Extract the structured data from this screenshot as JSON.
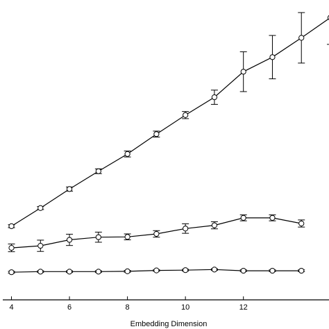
{
  "chart_data": {
    "type": "line",
    "title": "",
    "xlabel": "Embedding Dimension",
    "ylabel": "",
    "xlim": [
      3.7,
      15
    ],
    "ylim": [
      0,
      100
    ],
    "x_ticks": [
      4,
      6,
      8,
      10,
      12
    ],
    "grid": false,
    "marker": "circle",
    "series": [
      {
        "x": [
          4,
          5,
          6,
          7,
          8,
          9,
          10,
          11,
          12,
          13,
          14,
          15
        ],
        "values": [
          24.8,
          30.9,
          37.3,
          43.3,
          49.1,
          55.8,
          62.2,
          68.2,
          76.8,
          81.7,
          88.2,
          95.0
        ],
        "errors": [
          0.5,
          0.5,
          0.7,
          0.8,
          1.0,
          1.0,
          1.2,
          2.4,
          6.7,
          7.3,
          8.5,
          9.0
        ]
      },
      {
        "x": [
          4,
          5,
          6,
          7,
          8,
          9,
          10,
          11,
          12,
          13,
          14
        ],
        "values": [
          17.5,
          18.2,
          20.2,
          21.1,
          21.2,
          22.2,
          24.0,
          25.1,
          27.6,
          27.6,
          25.7
        ],
        "errors": [
          1.3,
          1.9,
          1.9,
          1.7,
          1.0,
          1.1,
          1.6,
          1.2,
          1.0,
          1.0,
          1.2
        ]
      },
      {
        "x": [
          4,
          5,
          6,
          7,
          8,
          9,
          10,
          11,
          12,
          13,
          14
        ],
        "values": [
          9.3,
          9.5,
          9.5,
          9.5,
          9.6,
          9.9,
          10.0,
          10.2,
          9.8,
          9.8,
          9.8
        ],
        "errors": [
          0.3,
          0.3,
          0.3,
          0.3,
          0.3,
          0.3,
          0.3,
          0.3,
          0.3,
          0.3,
          0.3
        ]
      }
    ]
  }
}
